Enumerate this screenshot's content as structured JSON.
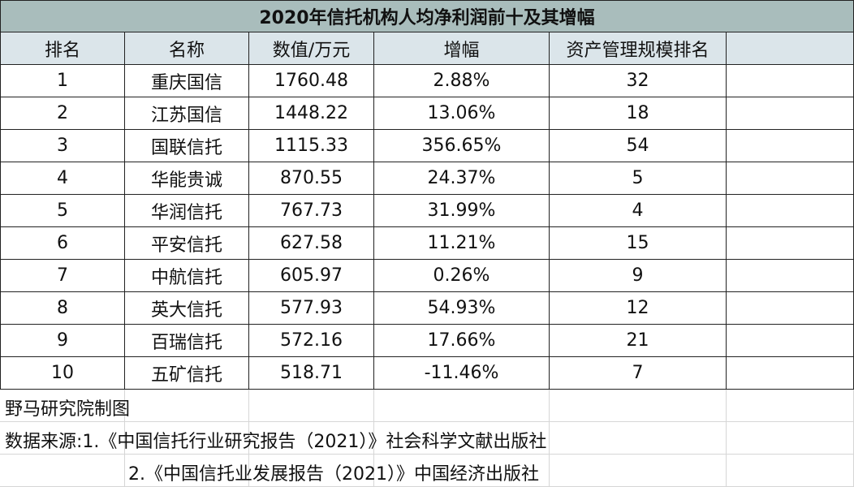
{
  "title": "2020年信托机构人均净利润前十及其增幅",
  "headers": [
    "排名",
    "名称",
    "数值/万元",
    "增幅",
    "资产管理规模排名",
    ""
  ],
  "rows": [
    [
      "1",
      "重庆国信",
      "1760.48",
      "2.88%",
      "32"
    ],
    [
      "2",
      "江苏国信",
      "1448.22",
      "13.06%",
      "18"
    ],
    [
      "3",
      "国联信托",
      "1115.33",
      "356.65%",
      "54"
    ],
    [
      "4",
      "华能贵诚",
      "870.55",
      "24.37%",
      "5"
    ],
    [
      "5",
      "华润信托",
      "767.73",
      "31.99%",
      "4"
    ],
    [
      "6",
      "平安信托",
      "627.58",
      "11.21%",
      "15"
    ],
    [
      "7",
      "中航信托",
      "605.97",
      "0.26%",
      "9"
    ],
    [
      "8",
      "英大信托",
      "577.93",
      "54.93%",
      "12"
    ],
    [
      "9",
      "百瑞信托",
      "572.16",
      "17.66%",
      "21"
    ],
    [
      "10",
      "五矿信托",
      "518.71",
      "-11.46%",
      "7"
    ]
  ],
  "footer": {
    "credit": "野马研究院制图",
    "source_line1": "数据来源:1.《中国信托行业研究报告（2021）》社会科学文献出版社",
    "source_line2": "2.《中国信托业发展报告（2021）》中国经济出版社"
  }
}
